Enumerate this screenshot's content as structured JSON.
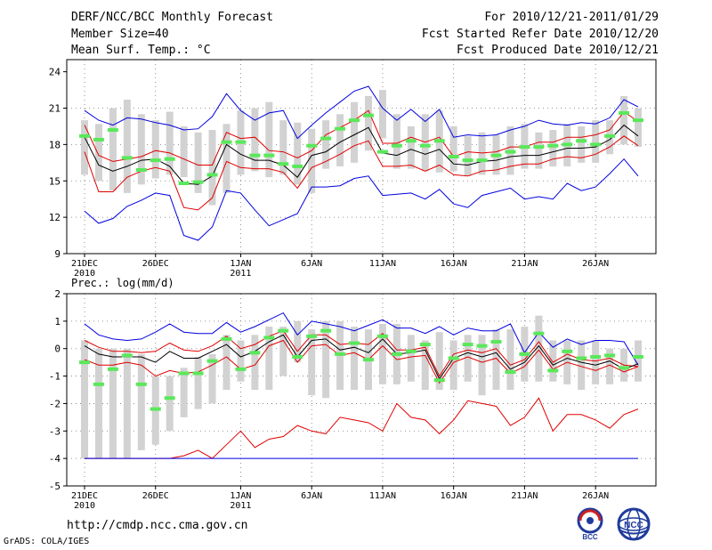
{
  "header": {
    "title": "DERF/NCC/BCC Monthly Forecast",
    "member_size": "Member Size=40",
    "variable": "Mean Surf. Temp.: °C",
    "period": "For 2010/12/21-2011/01/29",
    "started": "Fcst Started Refer Date 2010/12/20",
    "produced": "Fcst Produced Date 2010/12/21"
  },
  "footer": {
    "url": "http://cmdp.ncc.cma.gov.cn",
    "credit": "GrADS: COLA/IGES",
    "logo_left": "BCC",
    "logo_right": "NCC"
  },
  "colors": {
    "box": "#d2d2d2",
    "mean": "#000000",
    "spread": "#e00000",
    "range": "#0000e0",
    "median": "#5ae85a"
  },
  "chart_data": [
    {
      "type": "box",
      "id": "temperature",
      "title": "",
      "ylabel": "Mean Surf. Temp.: °C",
      "ylim": [
        9,
        25
      ],
      "yticks": [
        9,
        12,
        15,
        18,
        21,
        24
      ],
      "xlabels": [
        {
          "day": 1,
          "line1": "21DEC",
          "line2": "2010"
        },
        {
          "day": 6,
          "line1": "26DEC",
          "line2": ""
        },
        {
          "day": 12,
          "line1": "1JAN",
          "line2": "2011"
        },
        {
          "day": 17,
          "line1": "6JAN",
          "line2": ""
        },
        {
          "day": 22,
          "line1": "11JAN",
          "line2": ""
        },
        {
          "day": 27,
          "line1": "16JAN",
          "line2": ""
        },
        {
          "day": 32,
          "line1": "21JAN",
          "line2": ""
        },
        {
          "day": 37,
          "line1": "26JAN",
          "line2": ""
        }
      ],
      "days": [
        1,
        2,
        3,
        4,
        5,
        6,
        7,
        8,
        9,
        10,
        11,
        12,
        13,
        14,
        15,
        16,
        17,
        18,
        19,
        20,
        21,
        22,
        23,
        24,
        25,
        26,
        27,
        28,
        29,
        30,
        31,
        32,
        33,
        34,
        35,
        36,
        37,
        38,
        39,
        40
      ],
      "box_low": [
        15.5,
        15.0,
        14.2,
        14.0,
        14.7,
        15.2,
        15.5,
        15.3,
        14.0,
        13.0,
        14.0,
        15.5,
        15.8,
        15.3,
        15.5,
        14.7,
        14.0,
        16.0,
        16.2,
        16.5,
        17.5,
        18.5,
        16.0,
        16.0,
        15.8,
        15.7,
        15.8,
        15.4,
        15.5,
        15.5,
        15.5,
        16.0,
        16.0,
        16.2,
        16.2,
        16.5,
        16.5,
        17.2,
        18.0,
        17.8
      ],
      "box_high": [
        20.0,
        19.7,
        21.0,
        21.7,
        20.5,
        20.0,
        20.7,
        19.5,
        19.0,
        19.2,
        19.7,
        20.8,
        21.0,
        21.5,
        20.0,
        19.8,
        19.3,
        20.0,
        20.5,
        21.5,
        22.0,
        22.5,
        20.5,
        19.5,
        20.5,
        20.8,
        19.5,
        18.7,
        19.0,
        18.8,
        19.5,
        19.7,
        19.0,
        19.2,
        19.7,
        19.5,
        20.0,
        20.0,
        22.0,
        21.0
      ],
      "median": [
        18.7,
        18.4,
        19.2,
        16.9,
        15.9,
        16.7,
        16.8,
        14.8,
        14.9,
        15.5,
        18.2,
        18.2,
        17.1,
        17.1,
        16.4,
        16.2,
        17.9,
        18.5,
        19.3,
        20.0,
        20.4,
        17.4,
        17.9,
        18.3,
        17.9,
        18.3,
        17.0,
        16.7,
        16.7,
        17.1,
        17.4,
        17.8,
        17.8,
        17.9,
        18.0,
        18.3,
        18.0,
        18.7,
        20.6,
        20.0
      ],
      "series": [
        {
          "name": "ensemble max",
          "color_key": "range",
          "values": [
            20.8,
            20.0,
            19.6,
            20.2,
            20.1,
            19.8,
            19.6,
            19.2,
            19.3,
            20.3,
            22.2,
            20.8,
            20.0,
            20.6,
            20.8,
            18.5,
            19.6,
            20.6,
            21.5,
            22.4,
            22.8,
            21.0,
            20.0,
            20.9,
            19.9,
            20.9,
            18.6,
            18.8,
            18.7,
            18.8,
            19.2,
            19.5,
            20.0,
            19.7,
            19.6,
            19.8,
            19.7,
            20.2,
            21.7,
            21.1
          ]
        },
        {
          "name": "spread upper",
          "color_key": "spread",
          "values": [
            19.6,
            17.1,
            16.6,
            16.8,
            17.0,
            17.5,
            17.3,
            16.8,
            16.3,
            16.3,
            19.0,
            18.5,
            18.6,
            17.5,
            17.4,
            16.9,
            17.5,
            18.8,
            19.4,
            20.0,
            20.8,
            18.1,
            18.1,
            18.6,
            18.2,
            18.6,
            17.0,
            17.4,
            17.3,
            17.4,
            17.8,
            17.8,
            18.2,
            18.2,
            18.6,
            18.6,
            18.8,
            19.2,
            20.7,
            19.9
          ]
        },
        {
          "name": "ensemble mean",
          "color_key": "mean",
          "values": [
            18.6,
            16.3,
            15.8,
            16.2,
            16.7,
            16.8,
            16.2,
            14.8,
            14.7,
            15.4,
            18.0,
            17.2,
            16.7,
            16.7,
            16.3,
            15.3,
            17.1,
            17.4,
            18.2,
            18.8,
            19.4,
            17.3,
            17.1,
            17.6,
            17.2,
            17.6,
            16.4,
            16.3,
            16.6,
            16.7,
            17.0,
            17.1,
            17.1,
            17.4,
            17.7,
            17.7,
            17.8,
            18.4,
            19.6,
            18.7
          ]
        },
        {
          "name": "spread lower",
          "color_key": "spread",
          "values": [
            17.4,
            14.1,
            14.1,
            15.3,
            15.8,
            16.1,
            15.8,
            12.8,
            12.6,
            13.6,
            16.6,
            16.1,
            16.0,
            16.0,
            15.7,
            14.4,
            16.1,
            16.6,
            17.2,
            17.9,
            18.3,
            16.2,
            16.2,
            16.3,
            15.8,
            16.3,
            15.5,
            15.4,
            15.8,
            15.9,
            16.2,
            16.4,
            16.4,
            16.8,
            17.0,
            16.9,
            17.2,
            17.8,
            18.7,
            17.9
          ]
        },
        {
          "name": "ensemble min",
          "color_key": "range",
          "values": [
            12.5,
            11.5,
            11.9,
            12.9,
            13.4,
            14.0,
            13.8,
            10.5,
            10.1,
            11.2,
            14.2,
            14.0,
            12.6,
            11.3,
            11.8,
            12.3,
            14.5,
            14.5,
            14.6,
            15.2,
            15.4,
            13.8,
            13.9,
            14.0,
            13.5,
            14.3,
            13.1,
            12.8,
            13.8,
            14.1,
            14.4,
            13.5,
            13.7,
            13.5,
            14.8,
            14.2,
            14.5,
            15.6,
            16.8,
            15.4
          ]
        }
      ]
    },
    {
      "type": "box",
      "id": "precipitation",
      "title": "",
      "ylabel": "Prec.: log(mm/d)",
      "ylim": [
        -5,
        2
      ],
      "yticks": [
        -5,
        -4,
        -3,
        -2,
        -1,
        0,
        1,
        2
      ],
      "xlabels": [
        {
          "day": 1,
          "line1": "21DEC",
          "line2": "2010"
        },
        {
          "day": 6,
          "line1": "26DEC",
          "line2": ""
        },
        {
          "day": 12,
          "line1": "1JAN",
          "line2": "2011"
        },
        {
          "day": 17,
          "line1": "6JAN",
          "line2": ""
        },
        {
          "day": 22,
          "line1": "11JAN",
          "line2": ""
        },
        {
          "day": 27,
          "line1": "16JAN",
          "line2": ""
        },
        {
          "day": 32,
          "line1": "21JAN",
          "line2": ""
        },
        {
          "day": 37,
          "line1": "26JAN",
          "line2": ""
        }
      ],
      "days": [
        1,
        2,
        3,
        4,
        5,
        6,
        7,
        8,
        9,
        10,
        11,
        12,
        13,
        14,
        15,
        16,
        17,
        18,
        19,
        20,
        21,
        22,
        23,
        24,
        25,
        26,
        27,
        28,
        29,
        30,
        31,
        32,
        33,
        34,
        35,
        36,
        37,
        38,
        39,
        40
      ],
      "box_low": [
        -4.0,
        -4.0,
        -4.0,
        -4.0,
        -3.7,
        -3.5,
        -3.0,
        -2.5,
        -2.2,
        -2.0,
        -1.5,
        -1.2,
        -1.5,
        -1.5,
        -1.0,
        -0.5,
        -1.7,
        -1.8,
        -1.5,
        -1.5,
        -1.5,
        -1.3,
        -1.3,
        -1.2,
        -1.5,
        -1.5,
        -1.5,
        -1.2,
        -1.7,
        -1.5,
        -1.5,
        -1.2,
        -1.2,
        -1.2,
        -1.3,
        -1.5,
        -1.3,
        -1.3,
        -1.2,
        -1.2
      ],
      "box_high": [
        0.3,
        0.0,
        0.0,
        0.0,
        -0.2,
        -1.0,
        -1.0,
        -0.7,
        -0.3,
        -0.2,
        0.5,
        0.3,
        0.5,
        0.8,
        0.8,
        1.0,
        0.7,
        1.0,
        1.0,
        0.8,
        0.7,
        0.9,
        0.9,
        0.5,
        0.3,
        0.6,
        0.3,
        0.5,
        0.5,
        0.7,
        0.7,
        0.8,
        1.2,
        0.3,
        0.3,
        0.3,
        0.3,
        0.0,
        0.0,
        0.3
      ],
      "median": [
        -0.5,
        -1.3,
        -0.75,
        -0.25,
        -1.3,
        -2.2,
        -1.8,
        -0.9,
        -0.9,
        -0.45,
        0.35,
        -0.75,
        -0.15,
        0.4,
        0.65,
        -0.3,
        0.45,
        0.65,
        -0.2,
        0.2,
        -0.4,
        0.45,
        -0.2,
        -0.1,
        0.15,
        -1.15,
        -0.35,
        0.15,
        0.1,
        0.25,
        -0.85,
        -0.2,
        0.55,
        -0.8,
        -0.1,
        -0.35,
        -0.3,
        -0.25,
        -0.7,
        -0.3
      ],
      "series": [
        {
          "name": "ensemble max",
          "color_key": "range",
          "values": [
            0.9,
            0.5,
            0.35,
            0.3,
            0.35,
            0.6,
            0.9,
            0.6,
            0.55,
            0.55,
            0.95,
            0.6,
            0.8,
            1.05,
            1.3,
            0.5,
            1.0,
            0.9,
            0.8,
            0.65,
            0.85,
            1.05,
            0.75,
            0.75,
            0.55,
            0.8,
            0.5,
            0.75,
            0.65,
            0.65,
            0.9,
            -0.15,
            0.6,
            0.05,
            0.35,
            0.15,
            0.3,
            0.3,
            0.25,
            -0.6
          ]
        },
        {
          "name": "spread upper",
          "color_key": "spread",
          "values": [
            0.3,
            0.05,
            -0.1,
            -0.1,
            -0.15,
            -0.1,
            0.2,
            -0.05,
            -0.1,
            0.1,
            0.45,
            0.0,
            0.15,
            0.45,
            0.65,
            -0.1,
            0.5,
            0.5,
            0.15,
            0.2,
            0.15,
            0.55,
            -0.05,
            -0.05,
            0.05,
            -1.0,
            -0.2,
            -0.05,
            -0.15,
            0.0,
            -0.6,
            -0.4,
            0.25,
            -0.5,
            -0.2,
            -0.4,
            -0.45,
            -0.35,
            -0.6,
            -0.65
          ]
        },
        {
          "name": "ensemble mean",
          "color_key": "mean",
          "values": [
            0.1,
            -0.2,
            -0.3,
            -0.3,
            -0.3,
            -0.5,
            -0.1,
            -0.35,
            -0.35,
            -0.1,
            0.15,
            -0.3,
            -0.1,
            0.25,
            0.5,
            -0.3,
            0.3,
            0.35,
            -0.05,
            0.05,
            -0.15,
            0.35,
            -0.2,
            -0.15,
            -0.05,
            -1.1,
            -0.35,
            -0.15,
            -0.3,
            -0.15,
            -0.75,
            -0.5,
            0.1,
            -0.6,
            -0.35,
            -0.5,
            -0.6,
            -0.45,
            -0.75,
            -0.55
          ]
        },
        {
          "name": "spread lower",
          "color_key": "spread",
          "values": [
            -0.4,
            -0.6,
            -0.6,
            -0.5,
            -0.6,
            -1.0,
            -0.8,
            -0.9,
            -0.85,
            -0.6,
            -0.3,
            -0.75,
            -0.6,
            0.1,
            0.3,
            -0.5,
            0.1,
            0.15,
            -0.25,
            -0.15,
            -0.4,
            0.1,
            -0.4,
            -0.3,
            -0.25,
            -1.25,
            -0.5,
            -0.3,
            -0.5,
            -0.35,
            -0.9,
            -0.65,
            -0.05,
            -0.75,
            -0.5,
            -0.65,
            -0.8,
            -0.6,
            -0.85,
            -0.65
          ]
        },
        {
          "name": "spread min",
          "color_key": "spread",
          "values": [
            -4.0,
            -4.0,
            -4.0,
            -4.0,
            -4.0,
            -4.0,
            -4.0,
            -3.9,
            -3.7,
            -4.0,
            -3.5,
            -3.0,
            -3.6,
            -3.3,
            -3.2,
            -2.8,
            -3.0,
            -3.1,
            -2.5,
            -2.6,
            -2.7,
            -3.0,
            -2.0,
            -2.5,
            -2.6,
            -3.1,
            -2.6,
            -1.9,
            -2.0,
            -2.1,
            -2.8,
            -2.5,
            -1.8,
            -3.0,
            -2.4,
            -2.4,
            -2.6,
            -2.9,
            -2.4,
            -2.2
          ]
        },
        {
          "name": "ensemble min",
          "color_key": "range",
          "values": [
            -4,
            -4,
            -4,
            -4,
            -4,
            -4,
            -4,
            -4,
            -4,
            -4,
            -4,
            -4,
            -4,
            -4,
            -4,
            -4,
            -4,
            -4,
            -4,
            -4,
            -4,
            -4,
            -4,
            -4,
            -4,
            -4,
            -4,
            -4,
            -4,
            -4,
            -4,
            -4,
            -4,
            -4,
            -4,
            -4,
            -4,
            -4,
            -4,
            -4
          ]
        }
      ]
    }
  ]
}
